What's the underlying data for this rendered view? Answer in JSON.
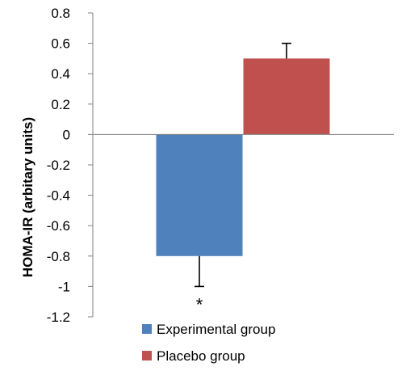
{
  "chart_data": {
    "type": "bar",
    "categories": [
      "Experimental group",
      "Placebo group"
    ],
    "values": [
      -0.8,
      0.5
    ],
    "errors": [
      0.2,
      0.1
    ],
    "error_direction": [
      "down",
      "up"
    ],
    "colors": [
      "#4f81bd",
      "#c0504d"
    ],
    "ylabel": "HOMA-IR (arbitary units)",
    "ylim": [
      -1.2,
      0.8
    ],
    "yticks": [
      "0.8",
      "0.6",
      "0.4",
      "0.2",
      "0",
      "-0.2",
      "-0.4",
      "-0.6",
      "-0.8",
      "-1",
      "-1.2"
    ],
    "ytick_values": [
      0.8,
      0.6,
      0.4,
      0.2,
      0,
      -0.2,
      -0.4,
      -0.6,
      -0.8,
      -1,
      -1.2
    ],
    "annotation": "*",
    "legend": [
      "Experimental group",
      "Placebo group"
    ],
    "legend_position": "bottom",
    "grid": false
  }
}
